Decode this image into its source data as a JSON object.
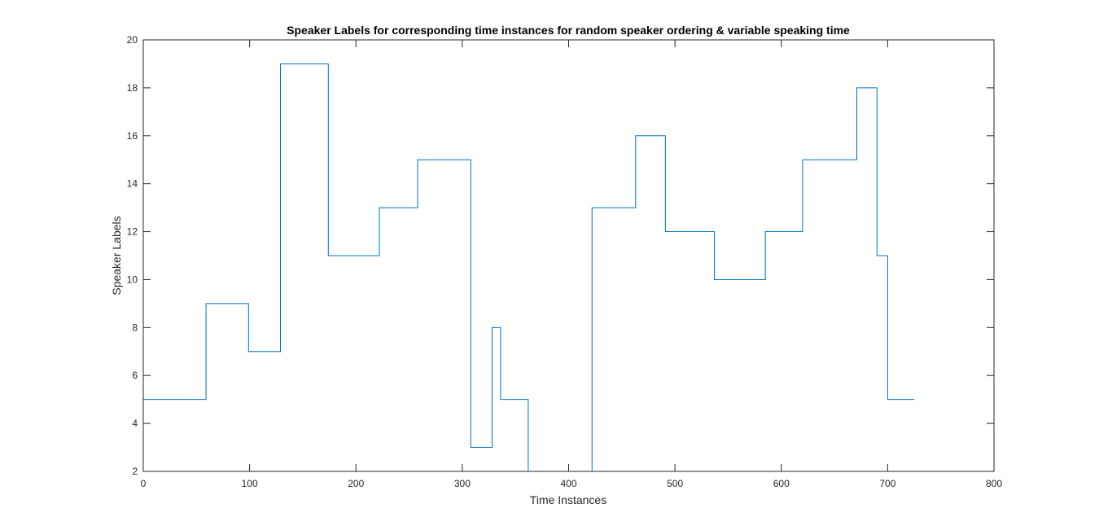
{
  "chart_data": {
    "type": "line",
    "title": "Speaker Labels for corresponding time instances for random speaker ordering & variable speaking time",
    "xlabel": "Time Instances",
    "ylabel": "Speaker Labels",
    "xlim": [
      0,
      800
    ],
    "ylim": [
      2,
      20
    ],
    "xticks": [
      0,
      100,
      200,
      300,
      400,
      500,
      600,
      700,
      800
    ],
    "yticks": [
      2,
      4,
      6,
      8,
      10,
      12,
      14,
      16,
      18,
      20
    ],
    "xtick_labels": [
      "0",
      "100",
      "200",
      "300",
      "400",
      "500",
      "600",
      "700",
      "800"
    ],
    "ytick_labels": [
      "2",
      "4",
      "6",
      "8",
      "10",
      "12",
      "14",
      "16",
      "18",
      "20"
    ],
    "grid": false,
    "line_color": "#0072BD",
    "series": [
      {
        "segments": [
          {
            "x_start": 0,
            "x_end": 59,
            "value": 5
          },
          {
            "x_start": 59,
            "x_end": 99,
            "value": 9
          },
          {
            "x_start": 99,
            "x_end": 129,
            "value": 7
          },
          {
            "x_start": 129,
            "x_end": 174,
            "value": 19
          },
          {
            "x_start": 174,
            "x_end": 222,
            "value": 11
          },
          {
            "x_start": 222,
            "x_end": 258,
            "value": 13
          },
          {
            "x_start": 258,
            "x_end": 308,
            "value": 15
          },
          {
            "x_start": 308,
            "x_end": 328,
            "value": 3
          },
          {
            "x_start": 328,
            "x_end": 336,
            "value": 8
          },
          {
            "x_start": 336,
            "x_end": 362,
            "value": 5
          },
          {
            "x_start": 362,
            "x_end": 422,
            "value": 1
          },
          {
            "x_start": 422,
            "x_end": 463,
            "value": 13
          },
          {
            "x_start": 463,
            "x_end": 491,
            "value": 16
          },
          {
            "x_start": 491,
            "x_end": 537,
            "value": 12
          },
          {
            "x_start": 537,
            "x_end": 585,
            "value": 10
          },
          {
            "x_start": 585,
            "x_end": 620,
            "value": 12
          },
          {
            "x_start": 620,
            "x_end": 671,
            "value": 15
          },
          {
            "x_start": 671,
            "x_end": 690,
            "value": 18
          },
          {
            "x_start": 690,
            "x_end": 700,
            "value": 11
          },
          {
            "x_start": 700,
            "x_end": 725,
            "value": 5
          }
        ]
      }
    ]
  }
}
